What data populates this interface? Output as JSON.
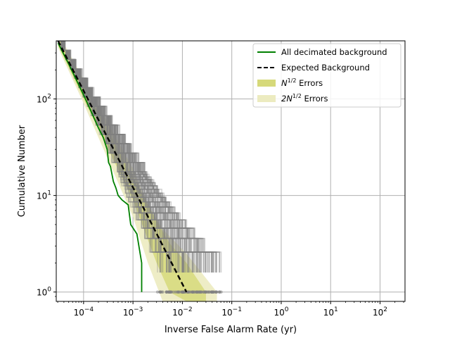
{
  "chart_data": {
    "type": "line",
    "xscale": "log",
    "yscale": "log",
    "xlabel": "Inverse False Alarm Rate (yr)",
    "ylabel": "Cumulative Number",
    "xlim": [
      2.8e-05,
      320
    ],
    "ylim": [
      0.8,
      400
    ],
    "grid": true,
    "legend_position": "top-right",
    "x_tick_labels": [
      "10^{-4}",
      "10^{-3}",
      "10^{-2}",
      "10^{-1}",
      "10^{0}",
      "10^{1}",
      "10^{2}"
    ],
    "x_ticks": [
      0.0001,
      0.001,
      0.01,
      0.1,
      1,
      10,
      100
    ],
    "y_tick_labels": [
      "10^{0}",
      "10^{1}",
      "10^{2}"
    ],
    "y_ticks": [
      1,
      10,
      100
    ],
    "legend": [
      {
        "label": "All decimated background",
        "style": "line",
        "color": "#008000"
      },
      {
        "label": "Expected Background",
        "style": "dashed",
        "color": "#000000"
      },
      {
        "label": "N^{1/2} Errors",
        "style": "band",
        "color": "#d6d97a"
      },
      {
        "label": "2N^{1/2} Errors",
        "style": "band",
        "color": "#ecebc0"
      }
    ],
    "series": [
      {
        "name": "All decimated background",
        "color": "#008000",
        "x": [
          3.05e-05,
          5e-05,
          0.0001,
          0.00015,
          0.0002,
          0.00025,
          0.0003,
          0.00032,
          0.00035,
          0.0004,
          0.00045,
          0.0005,
          0.0006,
          0.0008,
          0.0009,
          0.0012,
          0.0015,
          0.0015
        ],
        "y": [
          380,
          230,
          110,
          70,
          50,
          40,
          30,
          22,
          20,
          14,
          12,
          10,
          9,
          8,
          5,
          4,
          2,
          1
        ]
      },
      {
        "name": "Expected Background",
        "color": "#000000",
        "dashed": true,
        "x": [
          3.05e-05,
          0.0121
        ],
        "y": [
          400,
          1
        ]
      }
    ],
    "error_band_1": {
      "x": [
        3.05e-05,
        0.0001,
        0.001,
        0.003,
        0.0055,
        0.0121,
        0.03
      ],
      "lower": [
        360,
        100,
        9,
        2,
        1,
        0.8,
        0.8
      ],
      "upper": [
        440,
        140,
        15.5,
        5.5,
        3.2,
        2,
        1
      ]
    },
    "error_band_2": {
      "x": [
        3.05e-05,
        0.0001,
        0.001,
        0.002,
        0.004,
        0.0121,
        0.05
      ],
      "lower": [
        340,
        90,
        6,
        2,
        0.8,
        0.8,
        0.8
      ],
      "upper": [
        480,
        160,
        19,
        8,
        4.5,
        2.5,
        1
      ]
    }
  }
}
